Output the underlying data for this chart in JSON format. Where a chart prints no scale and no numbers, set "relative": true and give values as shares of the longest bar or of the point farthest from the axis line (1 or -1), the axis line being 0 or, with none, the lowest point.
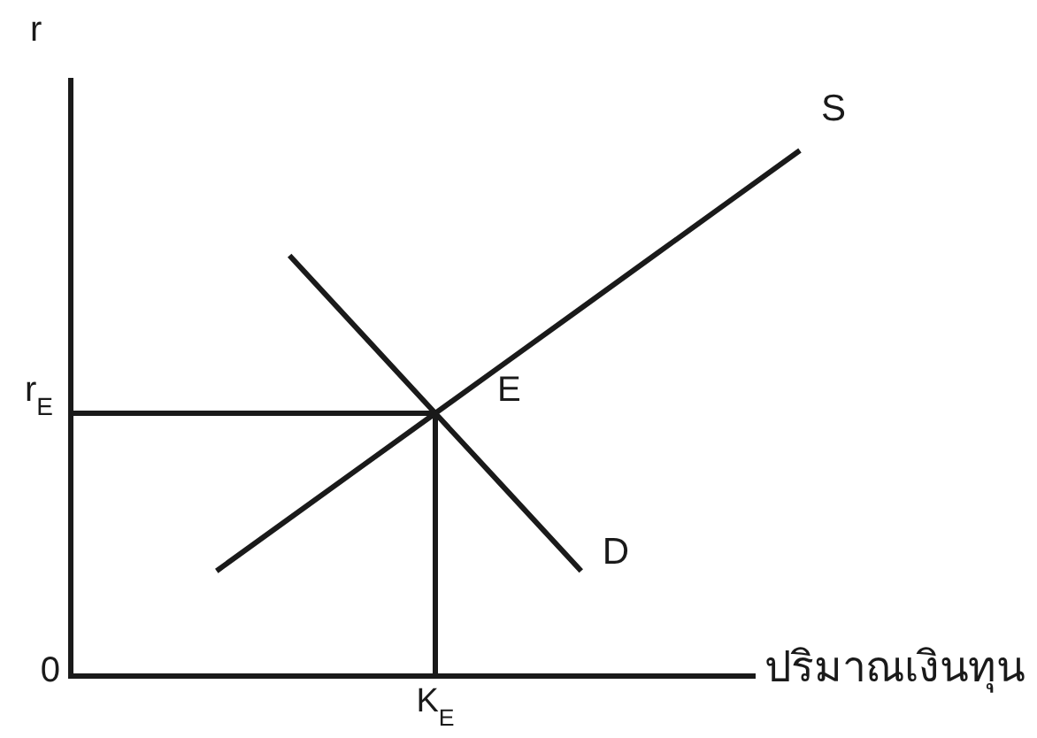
{
  "chart_data": {
    "type": "line",
    "relative": true,
    "xlabel": "ปริมาณเงินทุน",
    "ylabel": "r",
    "categories": [
      null,
      null,
      null,
      null,
      null,
      null,
      null,
      null,
      null,
      null,
      null
    ],
    "series": [
      {
        "name": "S",
        "color": "#1a1a1a",
        "values": [
          null,
          null,
          0.2,
          0.3,
          0.4,
          0.5,
          0.6,
          0.7,
          0.8,
          0.9,
          1.0
        ]
      },
      {
        "name": "D",
        "color": "#1a1a1a",
        "values": [
          null,
          null,
          null,
          0.8,
          0.65,
          0.5,
          0.35,
          0.2,
          null,
          null,
          null
        ]
      },
      {
        "type": "step",
        "color": "#1a1a1a",
        "values": [
          0.5,
          0.5,
          0.5,
          0.5,
          0.5,
          0,
          null,
          null,
          null,
          null,
          null
        ]
      }
    ],
    "annotations": [
      "E",
      "r$_{E}$",
      "K$_{E}$",
      "0"
    ]
  }
}
